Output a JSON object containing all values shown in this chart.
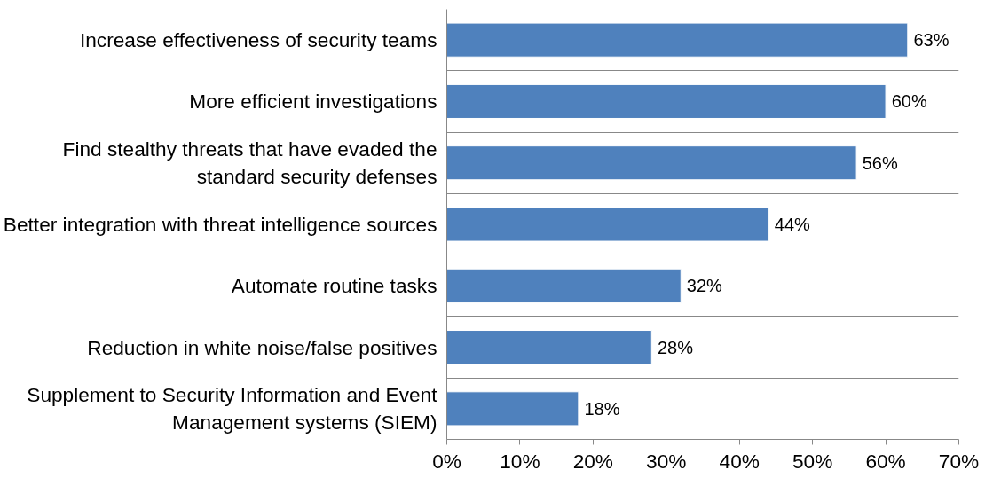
{
  "chart_data": {
    "type": "bar",
    "orientation": "horizontal",
    "categories": [
      "Increase effectiveness of security teams",
      "More efficient investigations",
      "Find stealthy threats that have evaded the standard security defenses",
      "Better integration with threat intelligence sources",
      "Automate routine tasks",
      "Reduction in white noise/false positives",
      "Supplement to Security Information and Event Management systems (SIEM)"
    ],
    "values": [
      63,
      60,
      56,
      44,
      32,
      28,
      18
    ],
    "value_labels": [
      "63%",
      "60%",
      "56%",
      "44%",
      "32%",
      "28%",
      "18%"
    ],
    "color": "#4f81bd",
    "xlim": [
      0,
      70
    ],
    "xticks": [
      {
        "value": 0,
        "label": "0%"
      },
      {
        "value": 10,
        "label": "10%"
      },
      {
        "value": 20,
        "label": "20%"
      },
      {
        "value": 30,
        "label": "30%"
      },
      {
        "value": 40,
        "label": "40%"
      },
      {
        "value": 50,
        "label": "50%"
      },
      {
        "value": 60,
        "label": "60%"
      },
      {
        "value": 70,
        "label": "70%"
      }
    ],
    "grid": "y"
  }
}
